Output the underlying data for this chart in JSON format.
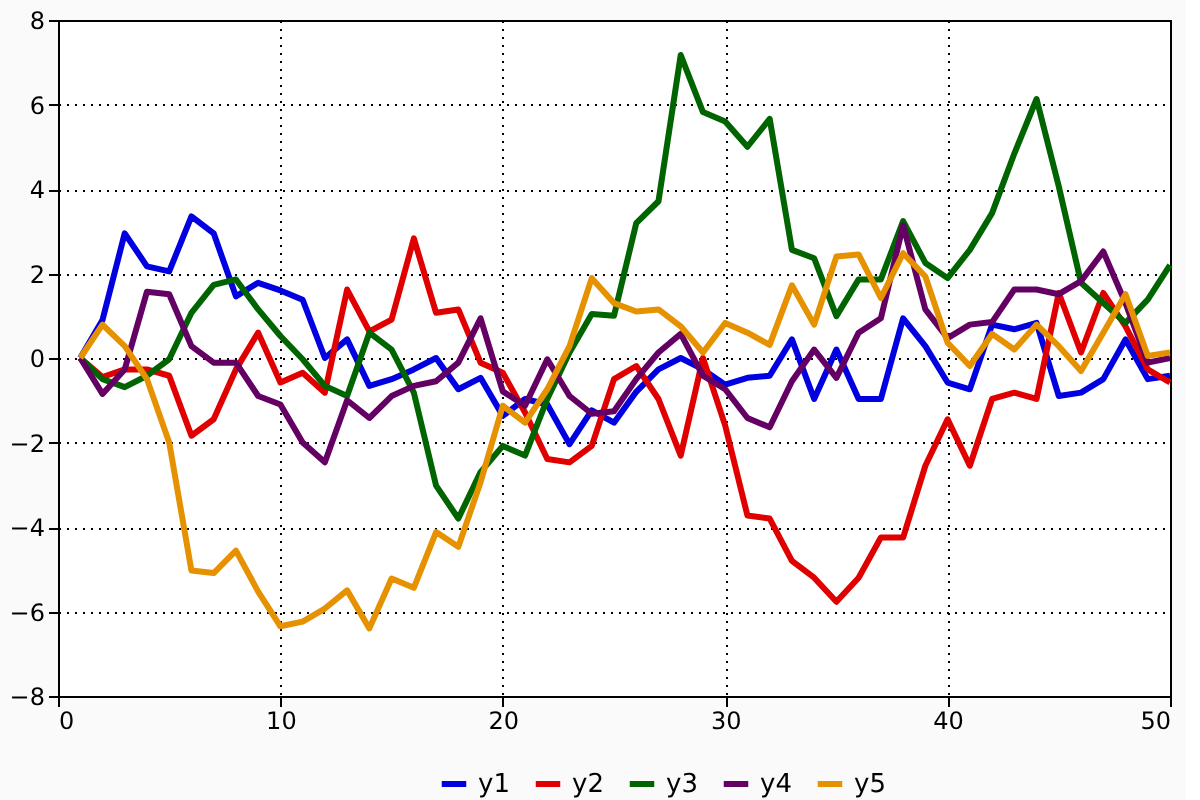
{
  "chart_data": {
    "type": "line",
    "x": [
      1,
      2,
      3,
      4,
      5,
      6,
      7,
      8,
      9,
      10,
      11,
      12,
      13,
      14,
      15,
      16,
      17,
      18,
      19,
      20,
      21,
      22,
      23,
      24,
      25,
      26,
      27,
      28,
      29,
      30,
      31,
      32,
      33,
      34,
      35,
      36,
      37,
      38,
      39,
      40,
      41,
      42,
      43,
      44,
      45,
      46,
      47,
      48,
      49,
      50
    ],
    "series": [
      {
        "name": "y1",
        "color": "#0000e0",
        "values": [
          0,
          0.9,
          2.95,
          2.17,
          2.05,
          3.35,
          2.95,
          1.46,
          1.78,
          1.6,
          1.38,
          0,
          0.44,
          -0.66,
          -0.5,
          -0.27,
          0,
          -0.74,
          -0.47,
          -1.37,
          -0.97,
          -1.1,
          -2.04,
          -1.24,
          -1.53,
          -0.8,
          -0.27,
          0,
          -0.27,
          -0.63,
          -0.47,
          -0.42,
          0.44,
          -0.97,
          0.2,
          -0.97,
          -0.97,
          0.94,
          0.28,
          -0.58,
          -0.74,
          0.79,
          0.68,
          0.83,
          -0.9,
          -0.82,
          -0.5,
          0.44,
          -0.5,
          -0.42
        ]
      },
      {
        "name": "y2",
        "color": "#e00000",
        "values": [
          0,
          -0.45,
          -0.27,
          -0.27,
          -0.42,
          -1.84,
          -1.45,
          -0.27,
          0.6,
          -0.58,
          -0.35,
          -0.82,
          1.62,
          0.63,
          0.91,
          2.83,
          1.07,
          1.15,
          -0.11,
          -0.35,
          -1.29,
          -2.39,
          -2.47,
          -2.08,
          -0.5,
          -0.19,
          -0.97,
          -2.31,
          0,
          -1.6,
          -3.73,
          -3.8,
          -4.8,
          -5.2,
          -5.77,
          -5.2,
          -4.25,
          -4.25,
          -2.55,
          -1.45,
          -2.55,
          -0.97,
          -0.82,
          -0.97,
          1.54,
          0.13,
          1.54,
          0.75,
          -0.27,
          -0.58
        ]
      },
      {
        "name": "y3",
        "color": "#006400",
        "values": [
          0,
          -0.5,
          -0.69,
          -0.42,
          -0.03,
          1.07,
          1.73,
          1.86,
          1.15,
          0.52,
          -0.03,
          -0.66,
          -0.9,
          0.6,
          0.2,
          -0.82,
          -3.02,
          -3.8,
          -2.7,
          -2.08,
          -2.31,
          -0.97,
          0.13,
          1.04,
          1.0,
          3.19,
          3.71,
          7.17,
          5.82,
          5.6,
          5.0,
          5.66,
          2.56,
          2.36,
          0.99,
          1.86,
          1.86,
          3.24,
          2.25,
          1.89,
          2.56,
          3.43,
          4.84,
          6.13,
          4.06,
          1.78,
          1.3,
          0.83,
          1.38,
          2.2
        ]
      },
      {
        "name": "y4",
        "color": "#640064",
        "values": [
          0,
          -0.85,
          -0.27,
          1.57,
          1.51,
          0.28,
          -0.11,
          -0.11,
          -0.9,
          -1.1,
          -2.0,
          -2.47,
          -1.0,
          -1.42,
          -0.9,
          -0.66,
          -0.55,
          -0.11,
          0.94,
          -0.79,
          -1.13,
          -0.03,
          -0.9,
          -1.32,
          -1.26,
          -0.5,
          0.13,
          0.57,
          -0.42,
          -0.74,
          -1.42,
          -1.64,
          -0.55,
          0.2,
          -0.47,
          0.6,
          0.94,
          3.14,
          1.15,
          0.47,
          0.79,
          0.85,
          1.62,
          1.62,
          1.51,
          1.82,
          2.52,
          1.3,
          -0.11,
          0
        ]
      },
      {
        "name": "y5",
        "color": "#e69100",
        "values": [
          0,
          0.79,
          0.28,
          -0.5,
          -2.0,
          -5.03,
          -5.09,
          -4.56,
          -5.53,
          -6.35,
          -6.24,
          -5.93,
          -5.5,
          -6.4,
          -5.22,
          -5.44,
          -4.12,
          -4.47,
          -2.94,
          -1.13,
          -1.53,
          -0.74,
          0.28,
          1.89,
          1.3,
          1.1,
          1.15,
          0.75,
          0.13,
          0.83,
          0.6,
          0.31,
          1.72,
          0.79,
          2.4,
          2.45,
          1.42,
          2.48,
          1.93,
          0.36,
          -0.19,
          0.57,
          0.2,
          0.79,
          0.28,
          -0.31,
          0.6,
          1.51,
          0.05,
          0.13
        ]
      }
    ],
    "xlim": [
      0,
      50
    ],
    "xticks": [
      0,
      10,
      20,
      30,
      40,
      50
    ],
    "ylim": [
      -8,
      8
    ],
    "yticks": [
      -8,
      -6,
      -4,
      -2,
      0,
      2,
      4,
      6,
      8
    ],
    "grid": true,
    "legend": "bottom",
    "marker": "none",
    "line_style": "solid"
  }
}
